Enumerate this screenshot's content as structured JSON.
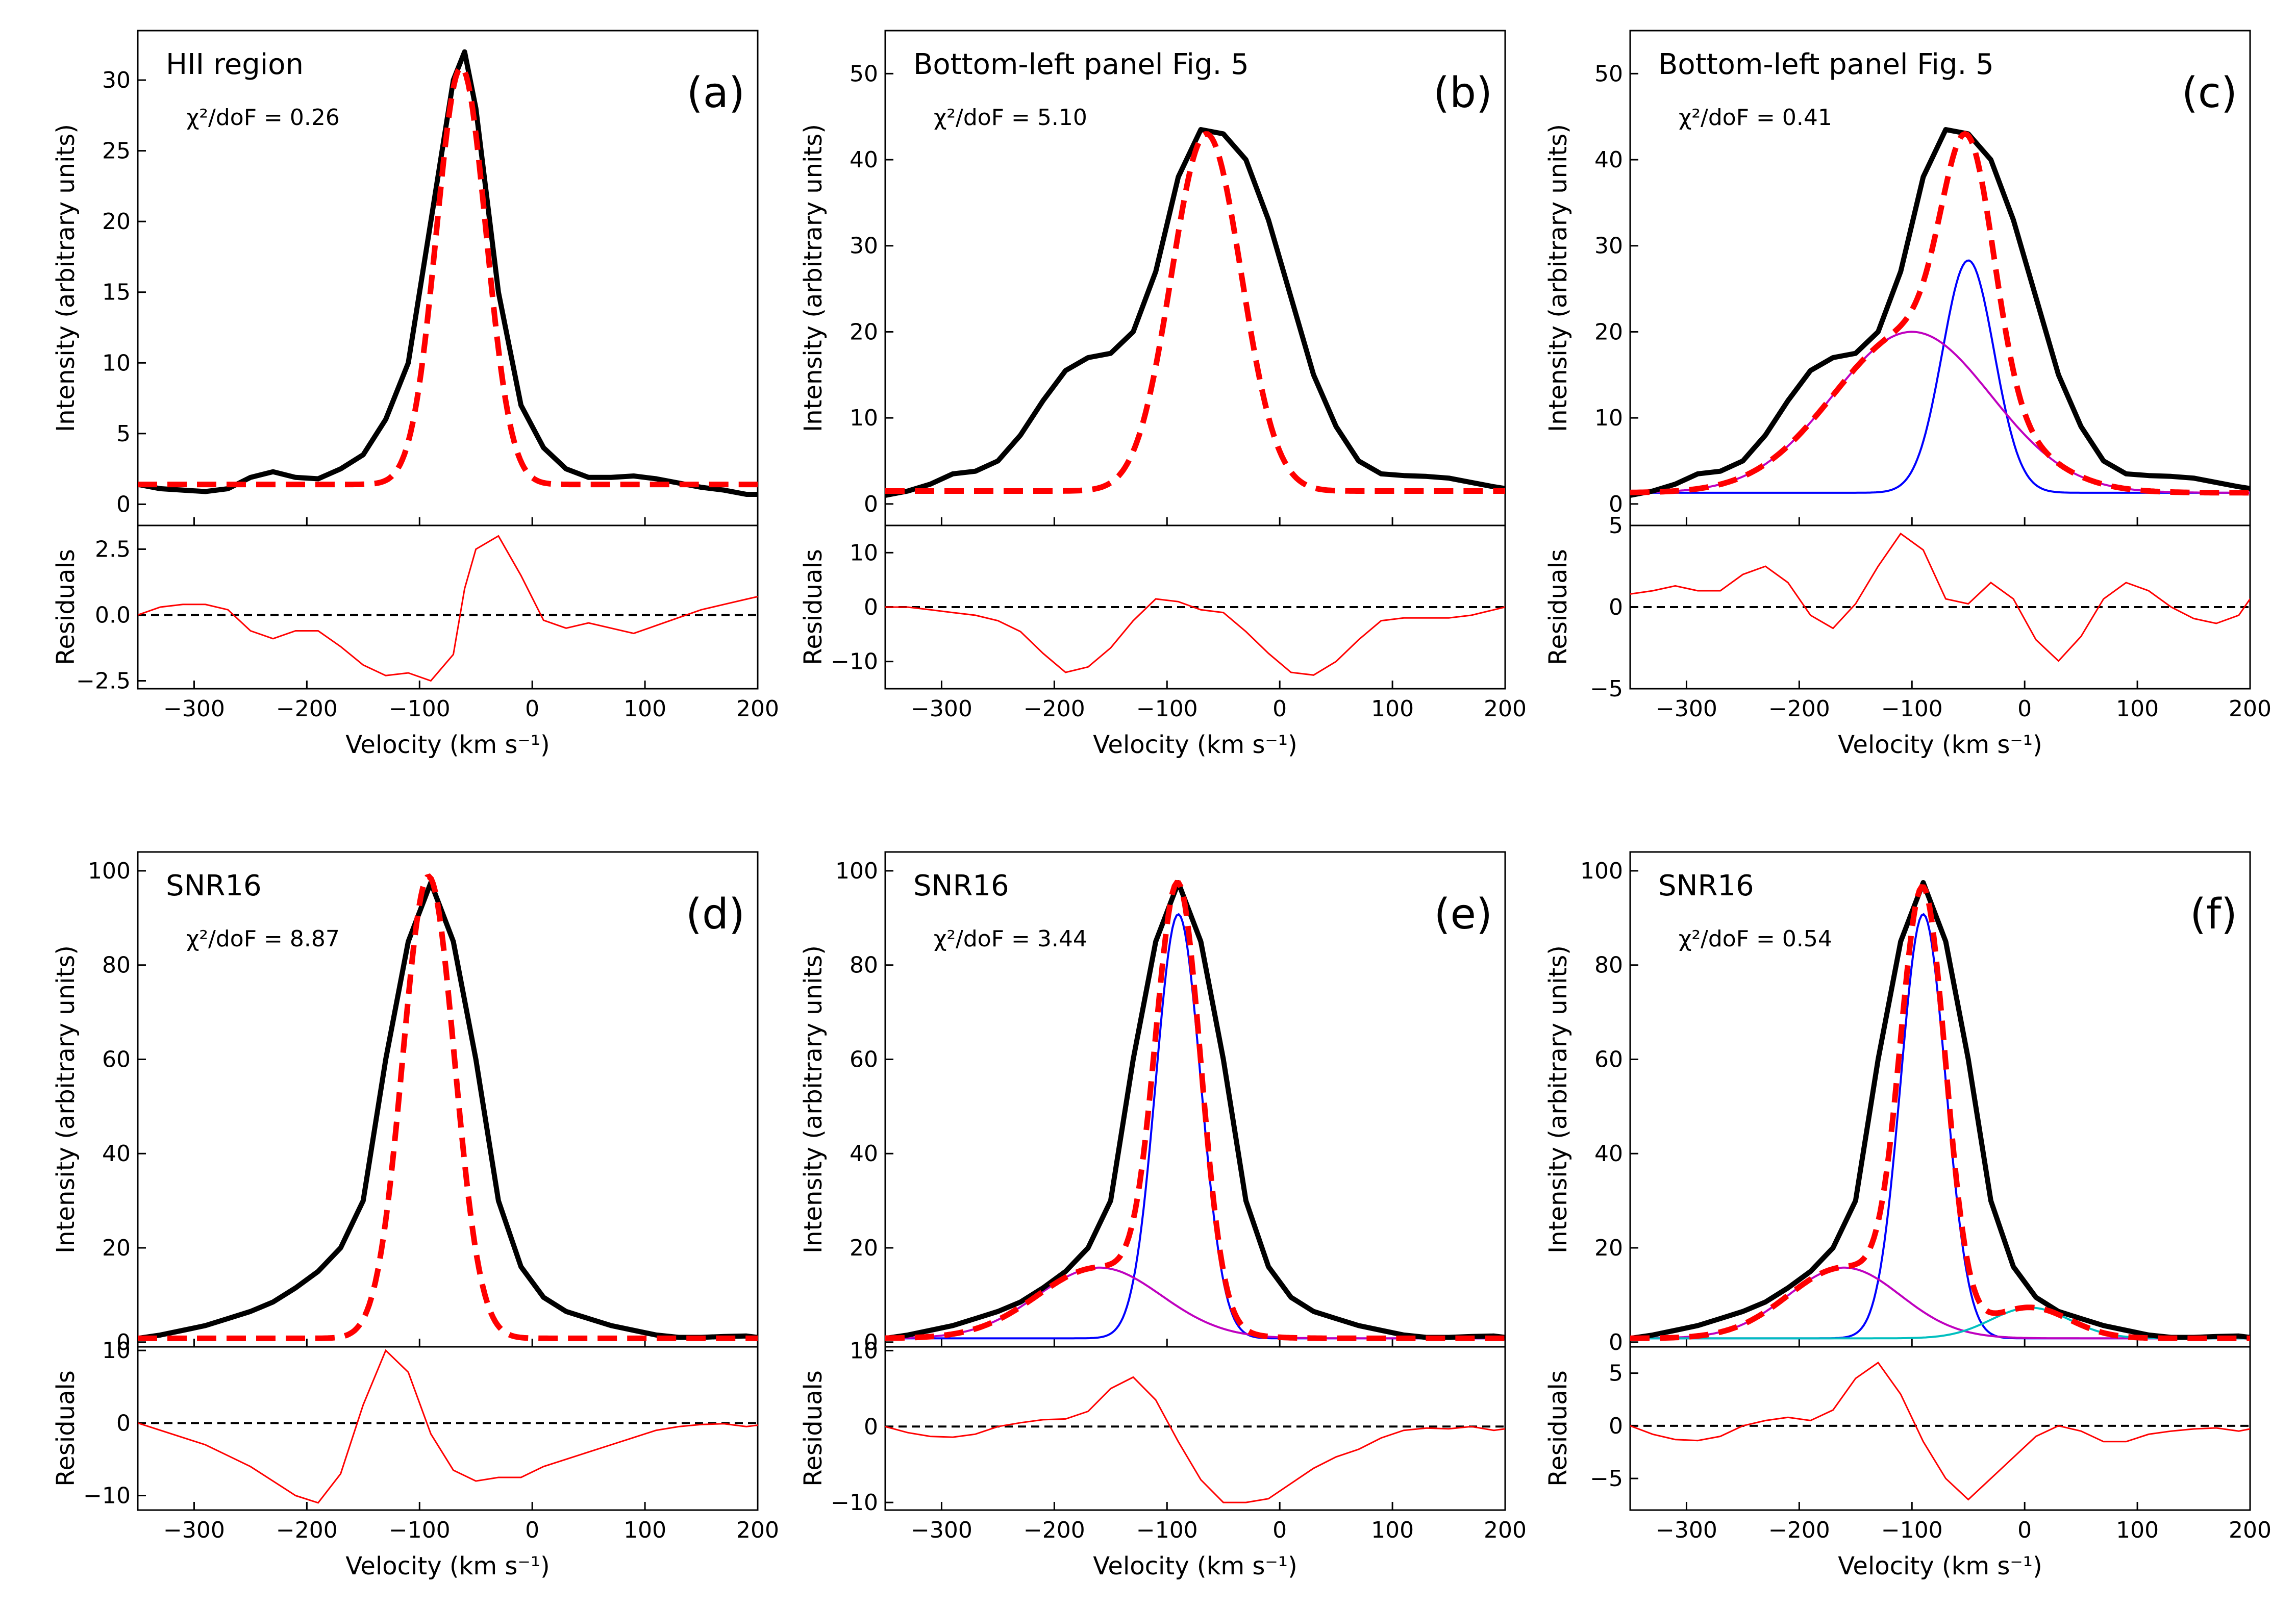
{
  "figure": {
    "colors": {
      "data": "#000000",
      "fit": "#ff0000",
      "comp1": "#0000ff",
      "comp2": "#bf00bf",
      "comp3": "#00bfbf",
      "zero": "#000000"
    }
  },
  "chart_data": [
    {
      "type": "line",
      "panel": "a",
      "title": "HII region",
      "letter": "(a)",
      "chi2": "χ²/doF = 0.26",
      "xlabel": "Velocity (km s⁻¹)",
      "ylabel": "Intensity (arbitrary units)",
      "residual_label": "Residuals",
      "xlim": [
        -350,
        200
      ],
      "ylim": [
        -1.5,
        33.5
      ],
      "yticks": [
        0,
        5,
        10,
        15,
        20,
        25,
        30
      ],
      "res_ylim": [
        -2.8,
        3.4
      ],
      "res_yticks": [
        -2.5,
        0.0,
        2.5
      ],
      "res_ytick_labels": [
        "−2.5",
        "0.0",
        "2.5"
      ],
      "xticks": [
        -300,
        -200,
        -100,
        0,
        100,
        200
      ],
      "xtick_labels": [
        "−300",
        "−200",
        "−100",
        "0",
        "100",
        "200"
      ],
      "x": [
        -350,
        -330,
        -310,
        -290,
        -270,
        -250,
        -230,
        -210,
        -190,
        -170,
        -150,
        -130,
        -110,
        -90,
        -70,
        -60,
        -50,
        -30,
        -10,
        10,
        30,
        50,
        70,
        90,
        110,
        130,
        150,
        170,
        190,
        200
      ],
      "observed": [
        1.4,
        1.1,
        1.0,
        0.9,
        1.1,
        1.9,
        2.3,
        1.9,
        1.8,
        2.5,
        3.5,
        6.0,
        10.0,
        20.0,
        30.0,
        32.0,
        28.0,
        15.0,
        7.0,
        4.0,
        2.5,
        1.9,
        1.9,
        2.0,
        1.8,
        1.5,
        1.2,
        1.0,
        0.7,
        0.7
      ],
      "model": {
        "baseline": 1.4,
        "components": [
          {
            "amp": 29.5,
            "center": -63,
            "sigma": 22
          }
        ],
        "show_components": false
      },
      "residuals": [
        0.0,
        0.3,
        0.4,
        0.4,
        0.2,
        -0.6,
        -0.9,
        -0.6,
        -0.6,
        -1.2,
        -1.9,
        -2.3,
        -2.2,
        -2.5,
        -1.5,
        1.0,
        2.5,
        3.0,
        1.5,
        -0.2,
        -0.5,
        -0.3,
        -0.5,
        -0.7,
        -0.4,
        -0.1,
        0.2,
        0.4,
        0.6,
        0.7
      ]
    },
    {
      "type": "line",
      "panel": "b",
      "title": "Bottom-left panel Fig. 5",
      "letter": "(b)",
      "chi2": "χ²/doF = 5.10",
      "xlabel": "Velocity (km s⁻¹)",
      "ylabel": "Intensity (arbitrary units)",
      "residual_label": "Residuals",
      "xlim": [
        -350,
        200
      ],
      "ylim": [
        -2.5,
        55
      ],
      "yticks": [
        0,
        10,
        20,
        30,
        40,
        50
      ],
      "res_ylim": [
        -15,
        15
      ],
      "res_yticks": [
        -10,
        0,
        10
      ],
      "res_ytick_labels": [
        "−10",
        "0",
        "10"
      ],
      "xticks": [
        -300,
        -200,
        -100,
        0,
        100,
        200
      ],
      "xtick_labels": [
        "−300",
        "−200",
        "−100",
        "0",
        "100",
        "200"
      ],
      "x": [
        -350,
        -330,
        -310,
        -290,
        -270,
        -250,
        -230,
        -210,
        -190,
        -170,
        -150,
        -130,
        -110,
        -90,
        -70,
        -50,
        -30,
        -10,
        10,
        30,
        50,
        70,
        90,
        110,
        130,
        150,
        170,
        190,
        200
      ],
      "observed": [
        1.0,
        1.5,
        2.3,
        3.5,
        3.8,
        5.0,
        8.0,
        12.0,
        15.5,
        17.0,
        17.5,
        20.0,
        27.0,
        38.0,
        43.5,
        43.0,
        40.0,
        33.0,
        24.0,
        15.0,
        9.0,
        5.0,
        3.5,
        3.3,
        3.2,
        3.0,
        2.5,
        2.0,
        1.8
      ],
      "model": {
        "baseline": 1.5,
        "components": [
          {
            "amp": 41.5,
            "center": -65,
            "sigma": 31
          }
        ],
        "show_components": false
      },
      "residuals": [
        0.0,
        0.0,
        -0.5,
        -1.0,
        -1.5,
        -2.5,
        -4.5,
        -8.5,
        -12.0,
        -11.0,
        -7.5,
        -2.5,
        1.5,
        1.0,
        -0.5,
        -1.0,
        -4.5,
        -8.5,
        -12.0,
        -12.5,
        -10.0,
        -6.0,
        -2.5,
        -2.0,
        -2.0,
        -2.0,
        -1.5,
        -0.5,
        0.0
      ]
    },
    {
      "type": "line",
      "panel": "c",
      "title": "Bottom-left panel Fig. 5",
      "letter": "(c)",
      "chi2": "χ²/doF = 0.41",
      "xlabel": "Velocity (km s⁻¹)",
      "ylabel": "Intensity (arbitrary units)",
      "residual_label": "Residuals",
      "xlim": [
        -350,
        200
      ],
      "ylim": [
        -2.5,
        55
      ],
      "yticks": [
        0,
        10,
        20,
        30,
        40,
        50
      ],
      "res_ylim": [
        -5,
        5
      ],
      "res_yticks": [
        -5,
        0,
        5
      ],
      "res_ytick_labels": [
        "−5",
        "0",
        "5"
      ],
      "xticks": [
        -300,
        -200,
        -100,
        0,
        100,
        200
      ],
      "xtick_labels": [
        "−300",
        "−200",
        "−100",
        "0",
        "100",
        "200"
      ],
      "x": [
        -350,
        -330,
        -310,
        -290,
        -270,
        -250,
        -230,
        -210,
        -190,
        -170,
        -150,
        -130,
        -110,
        -90,
        -70,
        -50,
        -30,
        -10,
        10,
        30,
        50,
        70,
        90,
        110,
        130,
        150,
        170,
        190,
        200
      ],
      "observed": [
        1.0,
        1.5,
        2.3,
        3.5,
        3.8,
        5.0,
        8.0,
        12.0,
        15.5,
        17.0,
        17.5,
        20.0,
        27.0,
        38.0,
        43.5,
        43.0,
        40.0,
        33.0,
        24.0,
        15.0,
        9.0,
        5.0,
        3.5,
        3.3,
        3.2,
        3.0,
        2.5,
        2.0,
        1.8
      ],
      "model": {
        "baseline": 1.3,
        "components": [
          {
            "amp": 27.0,
            "center": -50,
            "sigma": 23
          },
          {
            "amp": 18.7,
            "center": -100,
            "sigma": 70
          }
        ],
        "show_components": true
      },
      "residuals": [
        0.8,
        1.0,
        1.3,
        1.0,
        1.0,
        2.0,
        2.5,
        1.5,
        -0.5,
        -1.3,
        0.2,
        2.5,
        4.5,
        3.5,
        0.5,
        0.2,
        1.5,
        0.5,
        -2.0,
        -3.3,
        -1.8,
        0.5,
        1.5,
        1.0,
        0.0,
        -0.7,
        -1.0,
        -0.5,
        0.5
      ]
    },
    {
      "type": "line",
      "panel": "d",
      "title": "SNR16",
      "letter": "(d)",
      "chi2": "χ²/doF = 8.87",
      "xlabel": "Velocity (km s⁻¹)",
      "ylabel": "Intensity (arbitrary units)",
      "residual_label": "Residuals",
      "xlim": [
        -350,
        200
      ],
      "ylim": [
        -1,
        104
      ],
      "yticks": [
        0,
        20,
        40,
        60,
        80,
        100
      ],
      "res_ylim": [
        -12,
        10.5
      ],
      "res_yticks": [
        -10,
        0,
        10
      ],
      "res_ytick_labels": [
        "−10",
        "0",
        "10"
      ],
      "xticks": [
        -300,
        -200,
        -100,
        0,
        100,
        200
      ],
      "xtick_labels": [
        "−300",
        "−200",
        "−100",
        "0",
        "100",
        "200"
      ],
      "x": [
        -350,
        -330,
        -310,
        -290,
        -270,
        -250,
        -230,
        -210,
        -190,
        -170,
        -150,
        -130,
        -110,
        -90,
        -70,
        -50,
        -30,
        -10,
        10,
        30,
        50,
        70,
        90,
        110,
        130,
        150,
        170,
        190,
        200
      ],
      "observed": [
        0.8,
        1.5,
        2.5,
        3.5,
        5.0,
        6.5,
        8.5,
        11.5,
        15.0,
        20.0,
        30.0,
        60.0,
        85.0,
        97.5,
        85.0,
        60.0,
        30.0,
        16.0,
        9.5,
        6.5,
        5.0,
        3.5,
        2.5,
        1.5,
        1.0,
        1.0,
        1.2,
        1.3,
        1.0
      ],
      "model": {
        "baseline": 0.8,
        "components": [
          {
            "amp": 98.0,
            "center": -92,
            "sigma": 23
          }
        ],
        "show_components": false
      },
      "residuals": [
        0.0,
        -1.0,
        -2.0,
        -3.0,
        -4.5,
        -6.0,
        -8.0,
        -10.0,
        -11.0,
        -7.0,
        2.5,
        10.0,
        7.0,
        -1.5,
        -6.5,
        -8.0,
        -7.5,
        -7.5,
        -6.0,
        -5.0,
        -4.0,
        -3.0,
        -2.0,
        -1.0,
        -0.5,
        -0.2,
        -0.1,
        -0.5,
        -0.3
      ]
    },
    {
      "type": "line",
      "panel": "e",
      "title": "SNR16",
      "letter": "(e)",
      "chi2": "χ²/doF = 3.44",
      "xlabel": "Velocity (km s⁻¹)",
      "ylabel": "Intensity (arbitrary units)",
      "residual_label": "Residuals",
      "xlim": [
        -350,
        200
      ],
      "ylim": [
        -1,
        104
      ],
      "yticks": [
        0,
        20,
        40,
        60,
        80,
        100
      ],
      "res_ylim": [
        -11,
        10.5
      ],
      "res_yticks": [
        -10,
        0,
        10
      ],
      "res_ytick_labels": [
        "−10",
        "0",
        "10"
      ],
      "xticks": [
        -300,
        -200,
        -100,
        0,
        100,
        200
      ],
      "xtick_labels": [
        "−300",
        "−200",
        "−100",
        "0",
        "100",
        "200"
      ],
      "x": [
        -350,
        -330,
        -310,
        -290,
        -270,
        -250,
        -230,
        -210,
        -190,
        -170,
        -150,
        -130,
        -110,
        -90,
        -70,
        -50,
        -30,
        -10,
        10,
        30,
        50,
        70,
        90,
        110,
        130,
        150,
        170,
        190,
        200
      ],
      "observed": [
        0.8,
        1.5,
        2.5,
        3.5,
        5.0,
        6.5,
        8.5,
        11.5,
        15.0,
        20.0,
        30.0,
        60.0,
        85.0,
        97.5,
        85.0,
        60.0,
        30.0,
        16.0,
        9.5,
        6.5,
        5.0,
        3.5,
        2.5,
        1.5,
        1.0,
        1.0,
        1.2,
        1.3,
        1.0
      ],
      "model": {
        "baseline": 0.8,
        "components": [
          {
            "amp": 90.0,
            "center": -90,
            "sigma": 20
          },
          {
            "amp": 15.0,
            "center": -160,
            "sigma": 55
          }
        ],
        "show_components": true
      },
      "residuals": [
        0.0,
        -0.8,
        -1.3,
        -1.4,
        -1.0,
        0.0,
        0.5,
        0.9,
        1.0,
        2.0,
        5.0,
        6.5,
        3.5,
        -2.0,
        -7.0,
        -10.0,
        -10.0,
        -9.5,
        -7.5,
        -5.5,
        -4.0,
        -3.0,
        -1.5,
        -0.5,
        -0.2,
        -0.3,
        0.0,
        -0.5,
        -0.3
      ]
    },
    {
      "type": "line",
      "panel": "f",
      "title": "SNR16",
      "letter": "(f)",
      "chi2": "χ²/doF = 0.54",
      "xlabel": "Velocity (km s⁻¹)",
      "ylabel": "Intensity (arbitrary units)",
      "residual_label": "Residuals",
      "xlim": [
        -350,
        200
      ],
      "ylim": [
        -1,
        104
      ],
      "yticks": [
        0,
        20,
        40,
        60,
        80,
        100
      ],
      "res_ylim": [
        -8,
        7.5
      ],
      "res_yticks": [
        -5,
        0,
        5
      ],
      "res_ytick_labels": [
        "−5",
        "0",
        "5"
      ],
      "xticks": [
        -300,
        -200,
        -100,
        0,
        100,
        200
      ],
      "xtick_labels": [
        "−300",
        "−200",
        "−100",
        "0",
        "100",
        "200"
      ],
      "x": [
        -350,
        -330,
        -310,
        -290,
        -270,
        -250,
        -230,
        -210,
        -190,
        -170,
        -150,
        -130,
        -110,
        -90,
        -70,
        -50,
        -30,
        -10,
        10,
        30,
        50,
        70,
        90,
        110,
        130,
        150,
        170,
        190,
        200
      ],
      "observed": [
        0.8,
        1.5,
        2.5,
        3.5,
        5.0,
        6.5,
        8.5,
        11.5,
        15.0,
        20.0,
        30.0,
        60.0,
        85.0,
        97.5,
        85.0,
        60.0,
        30.0,
        16.0,
        9.5,
        6.5,
        5.0,
        3.5,
        2.5,
        1.5,
        1.0,
        1.0,
        1.2,
        1.3,
        1.0
      ],
      "model": {
        "baseline": 0.8,
        "components": [
          {
            "amp": 90.0,
            "center": -90,
            "sigma": 20
          },
          {
            "amp": 15.0,
            "center": -160,
            "sigma": 50
          },
          {
            "amp": 6.5,
            "center": 5,
            "sigma": 35
          }
        ],
        "show_components": true
      },
      "residuals": [
        0.0,
        -0.8,
        -1.3,
        -1.4,
        -1.0,
        0.0,
        0.5,
        0.8,
        0.5,
        1.5,
        4.5,
        6.0,
        3.0,
        -1.5,
        -5.0,
        -7.0,
        -5.0,
        -3.0,
        -1.0,
        0.0,
        -0.5,
        -1.5,
        -1.5,
        -0.8,
        -0.5,
        -0.3,
        -0.2,
        -0.5,
        -0.3
      ]
    }
  ]
}
